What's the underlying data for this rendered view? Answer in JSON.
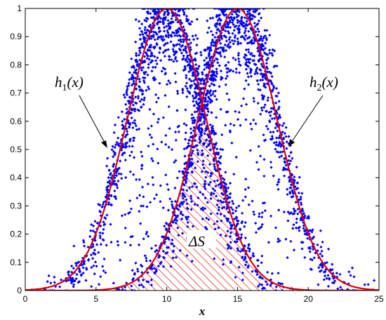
{
  "chart_data": {
    "type": "scatter",
    "xlabel": "x",
    "ylabel": "",
    "title": "",
    "xlim": [
      0,
      25
    ],
    "ylim": [
      0,
      1
    ],
    "xticks": [
      "0",
      "5",
      "10",
      "15",
      "20",
      "25"
    ],
    "yticks": [
      "0",
      "0.1",
      "0.2",
      "0.3",
      "0.4",
      "0.5",
      "0.6",
      "0.7",
      "0.8",
      "0.9",
      "1"
    ],
    "grid": false,
    "series": [
      {
        "label_var": "h",
        "label_sub": "1",
        "label_arg": "(x)",
        "mean": 10,
        "sigma": 2.8,
        "point_count": 1500,
        "curve_color": "#e00000",
        "point_color": "#0000ff"
      },
      {
        "label_var": "h",
        "label_sub": "2",
        "label_arg": "(x)",
        "mean": 15,
        "sigma": 2.8,
        "point_count": 1500,
        "curve_color": "#e00000",
        "point_color": "#0000ff"
      }
    ],
    "overlap_region": {
      "delta": "Δ",
      "s": "S",
      "hatch_color": "#e00000"
    }
  }
}
